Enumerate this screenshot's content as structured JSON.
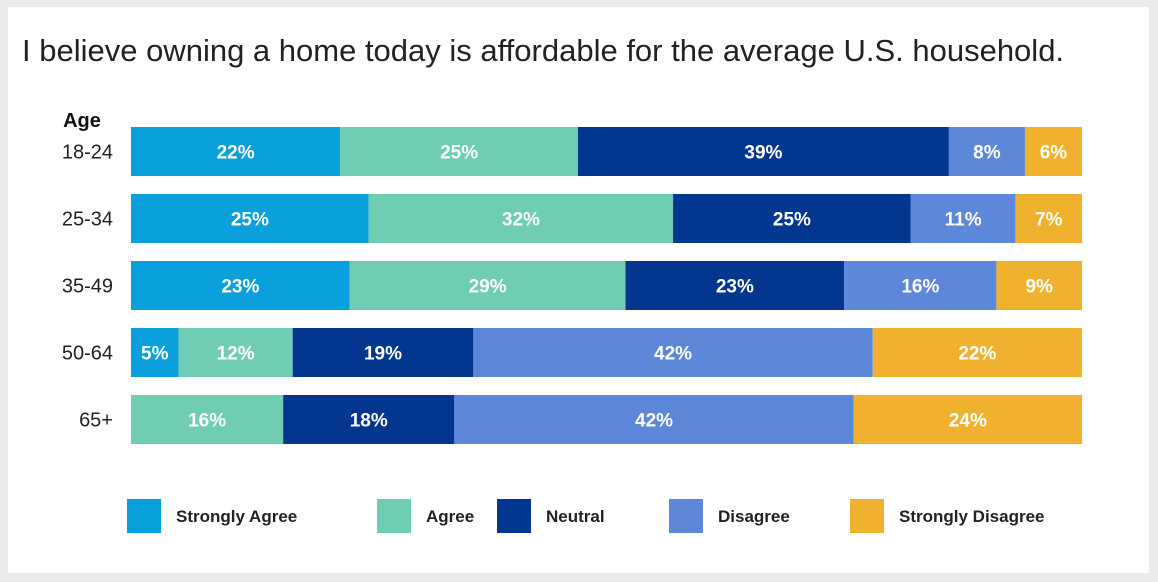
{
  "chart_data": {
    "type": "bar",
    "orientation": "horizontal",
    "stacked": true,
    "normalized_percent": true,
    "title": "I believe owning a home today is affordable for the average U.S. household.",
    "ylabel": "Age",
    "xlabel": "",
    "categories": [
      "18-24",
      "25-34",
      "35-49",
      "50-64",
      "65+"
    ],
    "xlim": [
      0,
      100
    ],
    "series": [
      {
        "name": "Strongly Agree",
        "color": "#0aa0dc",
        "values": [
          22,
          25,
          23,
          5,
          0
        ]
      },
      {
        "name": "Agree",
        "color": "#6fcdb3",
        "values": [
          25,
          32,
          29,
          12,
          16
        ]
      },
      {
        "name": "Neutral",
        "color": "#03378f",
        "values": [
          39,
          25,
          23,
          19,
          18
        ]
      },
      {
        "name": "Disagree",
        "color": "#5d87d9",
        "values": [
          8,
          11,
          16,
          42,
          42
        ]
      },
      {
        "name": "Strongly Disagree",
        "color": "#f0b22e",
        "values": [
          6,
          7,
          9,
          22,
          24
        ]
      }
    ],
    "value_suffix": "%",
    "legend_position": "bottom",
    "grid": false
  }
}
